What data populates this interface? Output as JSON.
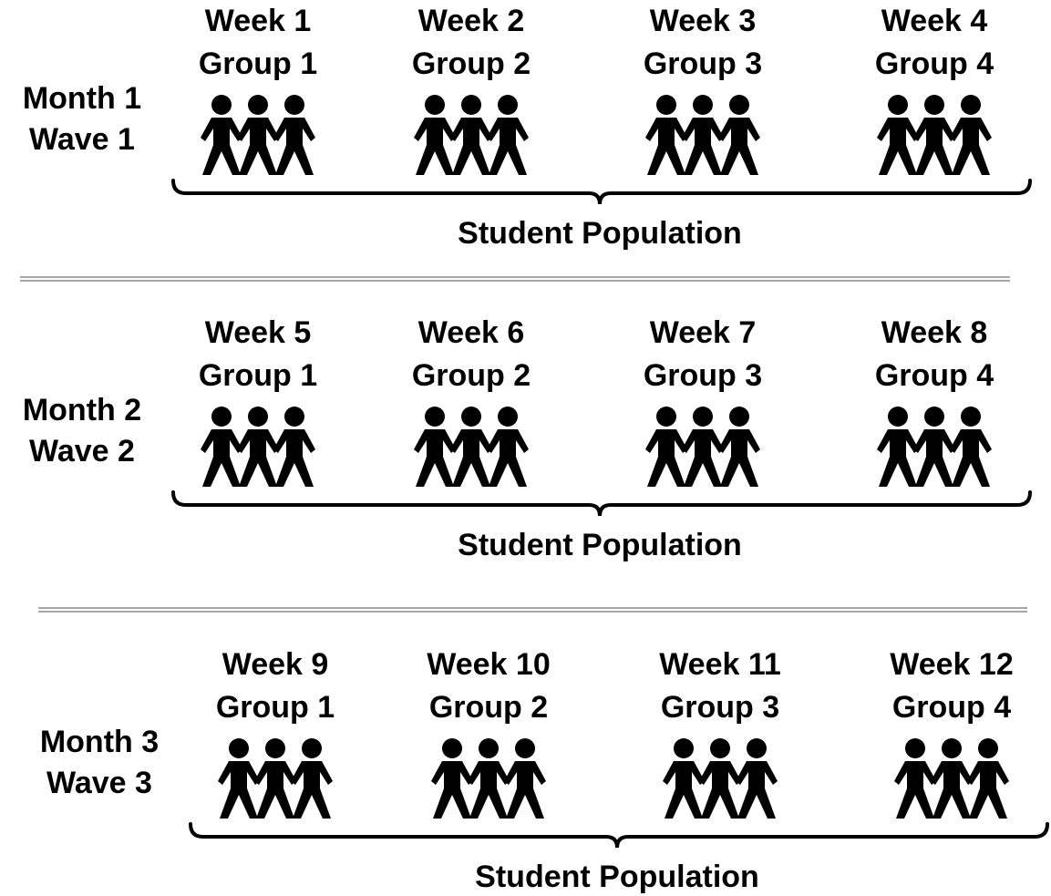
{
  "waves": [
    {
      "month": "Month 1",
      "wave": "Wave 1",
      "population": "Student Population",
      "weeks": [
        {
          "week": "Week 1",
          "group": "Group 1"
        },
        {
          "week": "Week 2",
          "group": "Group 2"
        },
        {
          "week": "Week 3",
          "group": "Group 3"
        },
        {
          "week": "Week 4",
          "group": "Group 4"
        }
      ]
    },
    {
      "month": "Month 2",
      "wave": "Wave 2",
      "population": "Student Population",
      "weeks": [
        {
          "week": "Week 5",
          "group": "Group 1"
        },
        {
          "week": "Week 6",
          "group": "Group 2"
        },
        {
          "week": "Week 7",
          "group": "Group 3"
        },
        {
          "week": "Week 8",
          "group": "Group 4"
        }
      ]
    },
    {
      "month": "Month 3",
      "wave": "Wave 3",
      "population": "Student Population",
      "weeks": [
        {
          "week": "Week 9",
          "group": "Group 1"
        },
        {
          "week": "Week 10",
          "group": "Group 2"
        },
        {
          "week": "Week 11",
          "group": "Group 3"
        },
        {
          "week": "Week 12",
          "group": "Group 4"
        }
      ]
    }
  ]
}
